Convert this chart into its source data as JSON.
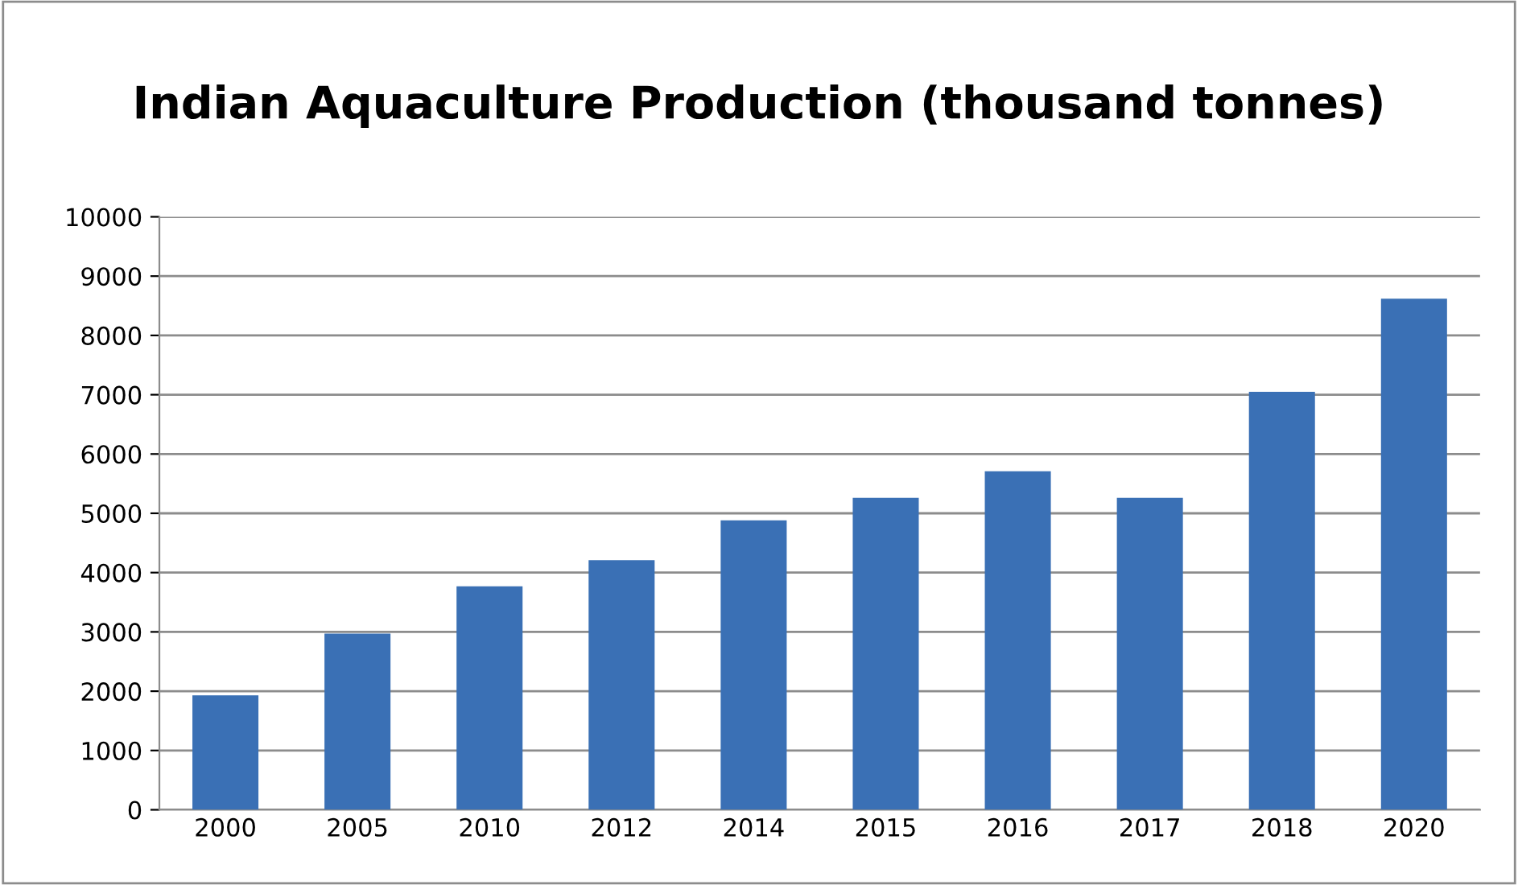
{
  "chart_data": {
    "type": "bar",
    "title": "Indian Aquaculture Production (thousand tonnes)",
    "categories": [
      "2000",
      "2005",
      "2010",
      "2012",
      "2014",
      "2015",
      "2016",
      "2017",
      "2018",
      "2020"
    ],
    "values": [
      1930,
      2970,
      3770,
      4210,
      4880,
      5260,
      5710,
      5260,
      7050,
      8620
    ],
    "color": "#3a70b5",
    "ylim": [
      0,
      10000
    ],
    "yticks": [
      0,
      1000,
      2000,
      3000,
      4000,
      5000,
      6000,
      7000,
      8000,
      9000,
      10000
    ],
    "grid": "y",
    "legend": false
  }
}
